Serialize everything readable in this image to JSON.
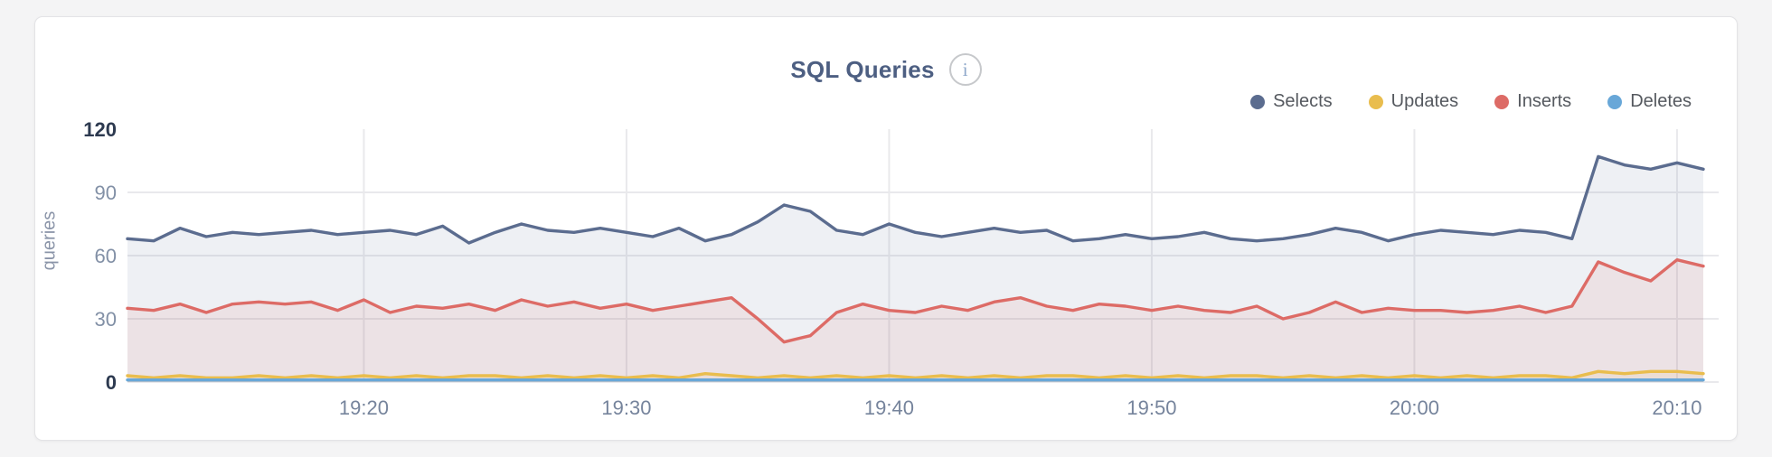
{
  "page": {
    "background": "#f4f4f5",
    "card_background": "#ffffff",
    "card_border": "#e3e3e6"
  },
  "header": {
    "title": "SQL Queries",
    "info_icon_glyph": "i"
  },
  "chart_data": {
    "type": "area",
    "title": "SQL Queries",
    "ylabel": "queries",
    "ylim": [
      0,
      120
    ],
    "yticks": [
      0,
      30,
      60,
      90,
      120
    ],
    "ytick_emphasis": [
      0,
      120
    ],
    "xticks": [
      "19:20",
      "19:30",
      "19:40",
      "19:50",
      "20:00",
      "20:10"
    ],
    "x_start": "19:11",
    "x_end": "20:11",
    "x_interval_minutes": 1,
    "grid": true,
    "legend_position": "top-right",
    "colors": {
      "grid": "#e9e9ec",
      "axis_label_muted": "#8290a6",
      "axis_label_strong": "#2d3a50",
      "xtick_label": "#76849c"
    },
    "series": [
      {
        "name": "Selects",
        "color": "#5b6c8f",
        "values": [
          68,
          67,
          73,
          69,
          71,
          70,
          71,
          72,
          70,
          71,
          72,
          70,
          74,
          66,
          71,
          75,
          72,
          71,
          73,
          71,
          69,
          73,
          67,
          70,
          76,
          84,
          81,
          72,
          70,
          75,
          71,
          69,
          71,
          73,
          71,
          72,
          67,
          68,
          70,
          68,
          69,
          71,
          68,
          67,
          68,
          70,
          73,
          71,
          67,
          70,
          72,
          71,
          70,
          72,
          71,
          68,
          107,
          103,
          101,
          104,
          101
        ]
      },
      {
        "name": "Updates",
        "color": "#e9bd4e",
        "values": [
          3,
          2,
          3,
          2,
          2,
          3,
          2,
          3,
          2,
          3,
          2,
          3,
          2,
          3,
          3,
          2,
          3,
          2,
          3,
          2,
          3,
          2,
          4,
          3,
          2,
          3,
          2,
          3,
          2,
          3,
          2,
          3,
          2,
          3,
          2,
          3,
          3,
          2,
          3,
          2,
          3,
          2,
          3,
          3,
          2,
          3,
          2,
          3,
          2,
          3,
          2,
          3,
          2,
          3,
          3,
          2,
          5,
          4,
          5,
          5,
          4
        ]
      },
      {
        "name": "Inserts",
        "color": "#dd6b66",
        "values": [
          35,
          34,
          37,
          33,
          37,
          38,
          37,
          38,
          34,
          39,
          33,
          36,
          35,
          37,
          34,
          39,
          36,
          38,
          35,
          37,
          34,
          36,
          38,
          40,
          30,
          19,
          22,
          33,
          37,
          34,
          33,
          36,
          34,
          38,
          40,
          36,
          34,
          37,
          36,
          34,
          36,
          34,
          33,
          36,
          30,
          33,
          38,
          33,
          35,
          34,
          34,
          33,
          34,
          36,
          33,
          36,
          57,
          52,
          48,
          58,
          55
        ]
      },
      {
        "name": "Deletes",
        "color": "#68a7d8",
        "values": [
          1,
          1,
          1,
          1,
          1,
          1,
          1,
          1,
          1,
          1,
          1,
          1,
          1,
          1,
          1,
          1,
          1,
          1,
          1,
          1,
          1,
          1,
          1,
          1,
          1,
          1,
          1,
          1,
          1,
          1,
          1,
          1,
          1,
          1,
          1,
          1,
          1,
          1,
          1,
          1,
          1,
          1,
          1,
          1,
          1,
          1,
          1,
          1,
          1,
          1,
          1,
          1,
          1,
          1,
          1,
          1,
          1,
          1,
          1,
          1,
          1
        ]
      }
    ]
  }
}
